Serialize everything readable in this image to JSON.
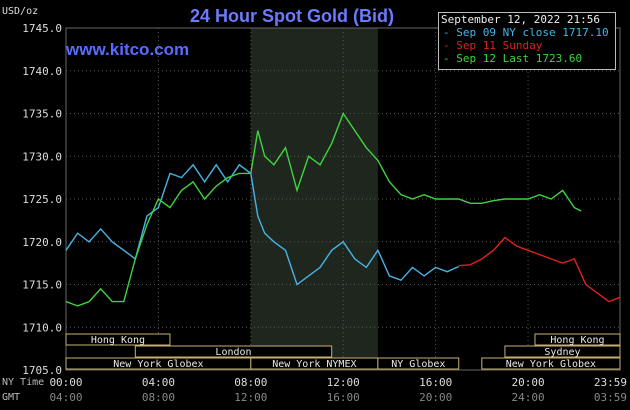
{
  "header": {
    "unit_label": "USD/oz",
    "title": "24 Hour Spot Gold (Bid)",
    "website": "www.kitco.com"
  },
  "legend": {
    "timestamp": "September 12, 2022 21:56",
    "items": [
      {
        "label": "Sep 09 NY close 1717.10",
        "color": "#46b4e6"
      },
      {
        "label": "Sep 11 Sunday",
        "color": "#e02020"
      },
      {
        "label": "Sep 12 Last 1723.60",
        "color": "#3fd43f"
      }
    ]
  },
  "timezones": {
    "top": "NY Time",
    "bottom": "GMT"
  },
  "sessions": [
    {
      "label": "Hong Kong",
      "x_start": 0.0,
      "x_end": 4.5,
      "row": 0
    },
    {
      "label": "London",
      "x_start": 3.0,
      "x_end": 11.5,
      "row": 1
    },
    {
      "label": "New York Globex",
      "x_start": 0.0,
      "x_end": 8.0,
      "row": 2
    },
    {
      "label": "New York NYMEX",
      "x_start": 8.0,
      "x_end": 13.5,
      "row": 2
    },
    {
      "label": "NY Globex",
      "x_start": 13.5,
      "x_end": 17.0,
      "row": 2
    },
    {
      "label": "Hong Kong",
      "x_start": 20.3,
      "x_end": 23.98,
      "row": 0
    },
    {
      "label": "Sydney",
      "x_start": 19.0,
      "x_end": 23.98,
      "row": 1
    },
    {
      "label": "New York Globex",
      "x_start": 18.0,
      "x_end": 23.98,
      "row": 2
    }
  ],
  "chart_data": {
    "type": "line",
    "title": "24 Hour Spot Gold (Bid)",
    "ylabel": "USD/oz",
    "xlim": [
      0,
      23.98
    ],
    "ylim": [
      1705,
      1745
    ],
    "y_ticks": [
      "1705.0",
      "1710.0",
      "1715.0",
      "1720.0",
      "1725.0",
      "1730.0",
      "1735.0",
      "1740.0",
      "1745.0"
    ],
    "x_ticks": [
      {
        "x": 0,
        "ny": "00:00",
        "gmt": "04:00"
      },
      {
        "x": 4,
        "ny": "04:00",
        "gmt": "08:00"
      },
      {
        "x": 8,
        "ny": "08:00",
        "gmt": "12:00"
      },
      {
        "x": 12,
        "ny": "12:00",
        "gmt": "16:00"
      },
      {
        "x": 16,
        "ny": "16:00",
        "gmt": "20:00"
      },
      {
        "x": 20,
        "ny": "20:00",
        "gmt": "24:00"
      },
      {
        "x": 23.98,
        "ny": "23:59",
        "gmt": "03:59"
      }
    ],
    "nymex_shade": [
      8.0,
      13.5
    ],
    "series": [
      {
        "name": "Sep 09 NY close 1717.10",
        "color": "#46b4e6",
        "x": [
          0,
          0.5,
          1,
          1.5,
          2,
          2.5,
          3,
          3.5,
          4,
          4.5,
          5,
          5.5,
          6,
          6.5,
          7,
          7.5,
          8,
          8.3,
          8.6,
          9,
          9.5,
          10,
          10.5,
          11,
          11.5,
          12,
          12.5,
          13,
          13.5,
          14,
          14.5,
          15,
          15.5,
          16,
          16.5,
          17
        ],
        "y": [
          1719,
          1721,
          1720,
          1721.5,
          1720,
          1719,
          1718,
          1723,
          1724,
          1728,
          1727.5,
          1729,
          1727,
          1729,
          1727,
          1729,
          1728,
          1723,
          1721,
          1720,
          1719,
          1715,
          1716,
          1717,
          1719,
          1720,
          1718,
          1717,
          1719,
          1716,
          1715.5,
          1717,
          1716,
          1717,
          1716.5,
          1717.1
        ]
      },
      {
        "name": "Sep 11 Sunday",
        "color": "#e02020",
        "x": [
          17,
          17.5,
          18,
          18.5,
          19,
          19.5,
          20,
          20.5,
          21,
          21.5,
          22,
          22.5,
          23,
          23.5,
          23.98
        ],
        "y": [
          1717.2,
          1717.3,
          1718,
          1719,
          1720.5,
          1719.5,
          1719,
          1718.5,
          1718,
          1717.5,
          1718,
          1715,
          1714,
          1713,
          1713.5
        ]
      },
      {
        "name": "Sep 12 Last 1723.60",
        "color": "#3fd43f",
        "x": [
          0,
          0.5,
          1,
          1.5,
          2,
          2.5,
          3,
          3.5,
          4,
          4.5,
          5,
          5.5,
          6,
          6.5,
          7,
          7.5,
          8,
          8.3,
          8.6,
          9,
          9.5,
          10,
          10.5,
          11,
          11.5,
          12,
          12.5,
          13,
          13.5,
          14,
          14.5,
          15,
          15.5,
          16,
          16.5,
          17,
          17.5,
          18,
          18.5,
          19,
          19.5,
          20,
          20.5,
          21,
          21.5,
          22,
          22.3
        ],
        "y": [
          1713,
          1712.5,
          1713,
          1714.5,
          1713,
          1713,
          1718,
          1722,
          1725,
          1724,
          1726,
          1727,
          1725,
          1726.5,
          1727.5,
          1728,
          1728,
          1733,
          1730,
          1729,
          1731,
          1726,
          1730,
          1729,
          1731.5,
          1735,
          1733,
          1731,
          1729.5,
          1727,
          1725.5,
          1725,
          1725.5,
          1725,
          1725,
          1725,
          1724.5,
          1724.5,
          1724.8,
          1725,
          1725,
          1725,
          1725.5,
          1725,
          1726,
          1724,
          1723.6
        ]
      }
    ]
  }
}
